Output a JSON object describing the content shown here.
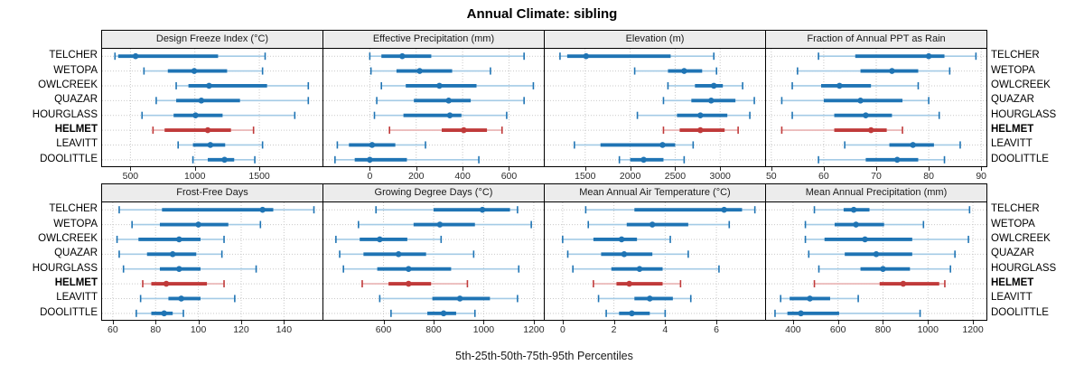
{
  "title": "Annual Climate: sibling",
  "xlabel": "5th-25th-50th-75th-95th Percentiles",
  "sites": [
    "TELCHER",
    "WETOPA",
    "OWLCREEK",
    "QUAZAR",
    "HOURGLASS",
    "HELMET",
    "LEAVITT",
    "DOOLITTLE"
  ],
  "highlight_site": "HELMET",
  "colors": {
    "site_main": "#1f74b4",
    "site_light": "#a4cbe6",
    "highlight_main": "#c03a3a",
    "highlight_light": "#e9b2b2",
    "grid": "#c9c9c9",
    "header_bg": "#ececec",
    "panel_border": "#000000",
    "tick_label": "#2b2b2b"
  },
  "chart_data": {
    "type": "percentile-dotplot",
    "percentile_labels": [
      "5th",
      "25th",
      "50th",
      "75th",
      "95th"
    ],
    "legend_note": "thin line = 5th-95th, thick line = 25th-75th, dot = median",
    "sites": [
      "TELCHER",
      "WETOPA",
      "OWLCREEK",
      "QUAZAR",
      "HOURGLASS",
      "HELMET",
      "LEAVITT",
      "DOOLITTLE"
    ],
    "panels": [
      {
        "title": "Design Freeze Index (°C)",
        "row": 0,
        "col": 0,
        "xlim": [
          280,
          1990
        ],
        "ticks": [
          500,
          1000,
          1500
        ],
        "percentiles": [
          [
            380,
            405,
            540,
            1180,
            1545
          ],
          [
            605,
            790,
            995,
            1250,
            1525
          ],
          [
            855,
            950,
            1110,
            1560,
            1880
          ],
          [
            700,
            855,
            1050,
            1350,
            1880
          ],
          [
            590,
            835,
            1005,
            1215,
            1775
          ],
          [
            675,
            765,
            1100,
            1280,
            1455
          ],
          [
            870,
            985,
            1120,
            1235,
            1525
          ],
          [
            985,
            1100,
            1230,
            1305,
            1465
          ]
        ]
      },
      {
        "title": "Effective Precipitation (mm)",
        "row": 0,
        "col": 1,
        "xlim": [
          -200,
          750
        ],
        "ticks": [
          0,
          200,
          400,
          600
        ],
        "percentiles": [
          [
            0,
            50,
            140,
            265,
            665
          ],
          [
            5,
            115,
            215,
            355,
            520
          ],
          [
            50,
            155,
            300,
            460,
            705
          ],
          [
            30,
            190,
            340,
            435,
            665
          ],
          [
            20,
            145,
            345,
            395,
            590
          ],
          [
            85,
            310,
            405,
            505,
            570
          ],
          [
            -140,
            -90,
            10,
            110,
            240
          ],
          [
            -150,
            -65,
            0,
            160,
            470
          ]
        ]
      },
      {
        "title": "Elevation (m)",
        "row": 0,
        "col": 2,
        "xlim": [
          1050,
          3500
        ],
        "ticks": [
          1500,
          2000,
          2500,
          3000
        ],
        "percentiles": [
          [
            1220,
            1300,
            1510,
            2450,
            2930
          ],
          [
            2050,
            2420,
            2600,
            2800,
            2960
          ],
          [
            2420,
            2720,
            2930,
            3030,
            3250
          ],
          [
            2370,
            2680,
            2900,
            3170,
            3380
          ],
          [
            2080,
            2520,
            2780,
            3080,
            3330
          ],
          [
            2370,
            2550,
            2780,
            3050,
            3200
          ],
          [
            1380,
            1670,
            2360,
            2500,
            2700
          ],
          [
            1880,
            2000,
            2150,
            2370,
            2600
          ]
        ]
      },
      {
        "title": "Fraction of Annual PPT as Rain",
        "row": 0,
        "col": 3,
        "xlim": [
          49,
          91
        ],
        "ticks": [
          50,
          60,
          70,
          80,
          90
        ],
        "percentiles": [
          [
            59,
            66,
            80,
            83,
            89
          ],
          [
            55,
            67,
            73,
            78,
            84
          ],
          [
            54,
            59.5,
            63,
            69,
            78
          ],
          [
            52,
            60,
            67,
            75,
            80
          ],
          [
            54,
            62,
            68,
            73,
            82
          ],
          [
            52,
            62,
            69,
            72,
            75
          ],
          [
            64,
            72.5,
            77,
            81,
            86
          ],
          [
            59,
            68,
            74,
            78,
            83
          ]
        ]
      },
      {
        "title": "Frost-Free Days",
        "row": 1,
        "col": 0,
        "xlim": [
          55,
          158
        ],
        "ticks": [
          60,
          80,
          100,
          120,
          140
        ],
        "percentiles": [
          [
            63,
            83,
            130,
            135,
            154
          ],
          [
            69,
            82,
            100,
            114,
            129
          ],
          [
            62,
            72,
            91,
            101,
            112
          ],
          [
            63,
            76,
            88,
            99,
            111
          ],
          [
            65,
            82,
            91,
            101,
            127
          ],
          [
            74,
            78,
            85,
            104,
            112
          ],
          [
            73,
            86,
            92,
            101,
            117
          ],
          [
            71,
            78,
            84,
            88,
            93
          ]
        ]
      },
      {
        "title": "Growing Degree Days (°C)",
        "row": 1,
        "col": 1,
        "xlim": [
          360,
          1240
        ],
        "ticks": [
          600,
          800,
          1000,
          1200
        ],
        "percentiles": [
          [
            570,
            800,
            995,
            1105,
            1135
          ],
          [
            500,
            720,
            825,
            965,
            1190
          ],
          [
            410,
            505,
            585,
            695,
            830
          ],
          [
            425,
            520,
            660,
            770,
            960
          ],
          [
            440,
            575,
            700,
            870,
            1140
          ],
          [
            515,
            620,
            700,
            790,
            935
          ],
          [
            585,
            795,
            905,
            1025,
            1135
          ],
          [
            630,
            775,
            840,
            890,
            965
          ]
        ]
      },
      {
        "title": "Mean Annual Air Temperature (°C)",
        "row": 1,
        "col": 2,
        "xlim": [
          -0.7,
          7.9
        ],
        "ticks": [
          0,
          2,
          4,
          6
        ],
        "percentiles": [
          [
            0.9,
            2.8,
            6.3,
            7.0,
            7.5
          ],
          [
            1.0,
            2.5,
            3.5,
            4.9,
            6.5
          ],
          [
            0.0,
            1.2,
            2.3,
            2.9,
            4.2
          ],
          [
            0.2,
            1.5,
            2.4,
            3.5,
            4.9
          ],
          [
            0.4,
            1.9,
            3.0,
            3.9,
            6.1
          ],
          [
            1.2,
            2.1,
            2.6,
            3.9,
            4.6
          ],
          [
            1.4,
            2.8,
            3.4,
            4.3,
            5.0
          ],
          [
            1.7,
            2.2,
            2.7,
            3.4,
            4.0
          ]
        ]
      },
      {
        "title": "Mean Annual Precipitation (mm)",
        "row": 1,
        "col": 3,
        "xlim": [
          280,
          1260
        ],
        "ticks": [
          400,
          600,
          800,
          1000,
          1200
        ],
        "percentiles": [
          [
            495,
            625,
            670,
            740,
            1185
          ],
          [
            455,
            585,
            680,
            805,
            980
          ],
          [
            455,
            540,
            720,
            930,
            1180
          ],
          [
            470,
            630,
            770,
            930,
            1120
          ],
          [
            515,
            700,
            800,
            920,
            1100
          ],
          [
            495,
            785,
            890,
            1050,
            1075
          ],
          [
            345,
            385,
            475,
            565,
            690
          ],
          [
            320,
            375,
            435,
            605,
            965
          ]
        ]
      }
    ]
  }
}
